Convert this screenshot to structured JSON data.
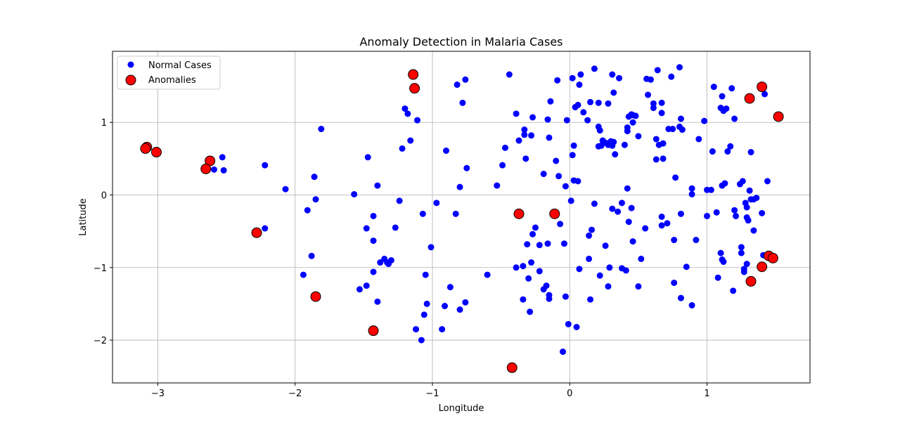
{
  "chart_data": {
    "type": "scatter",
    "title": "Anomaly Detection in Malaria Cases",
    "xlabel": "Longitude",
    "ylabel": "Latitude",
    "xlim": [
      -3.33,
      1.75
    ],
    "ylim": [
      -2.59,
      1.98
    ],
    "xticks": [
      -3,
      -2,
      -1,
      0,
      1
    ],
    "yticks": [
      -2,
      -1,
      0,
      1
    ],
    "xtick_labels": [
      "−3",
      "−2",
      "−1",
      "0",
      "1"
    ],
    "ytick_labels": [
      "−2",
      "−1",
      "0",
      "1"
    ],
    "grid": true,
    "legend_position": "top-left",
    "colors": {
      "normal": "#0000ff",
      "anomaly": "#ff0000",
      "anomaly_edge": "#000000",
      "grid": "#b0b0b0"
    },
    "series": [
      {
        "name": "Normal Cases",
        "points": [
          [
            -2.53,
            0.52
          ],
          [
            -2.59,
            0.35
          ],
          [
            -2.52,
            0.34
          ],
          [
            -2.22,
            0.41
          ],
          [
            -2.22,
            -0.46
          ],
          [
            -2.07,
            0.08
          ],
          [
            -1.81,
            0.91
          ],
          [
            -1.86,
            0.25
          ],
          [
            -1.85,
            -0.06
          ],
          [
            -1.91,
            -0.21
          ],
          [
            -1.88,
            -0.84
          ],
          [
            -1.94,
            -1.1
          ],
          [
            -1.57,
            0.01
          ],
          [
            -1.47,
            0.52
          ],
          [
            -1.48,
            -0.46
          ],
          [
            -1.43,
            -0.29
          ],
          [
            -1.43,
            -0.63
          ],
          [
            -1.43,
            -1.06
          ],
          [
            -1.48,
            -1.25
          ],
          [
            -1.53,
            -1.3
          ],
          [
            -1.4,
            -1.47
          ],
          [
            -1.4,
            0.13
          ],
          [
            -1.38,
            -0.93
          ],
          [
            -1.35,
            -0.88
          ],
          [
            -1.33,
            -0.93
          ],
          [
            -1.3,
            -0.9
          ],
          [
            -1.32,
            -0.95
          ],
          [
            -1.27,
            -0.45
          ],
          [
            -1.24,
            -0.08
          ],
          [
            -1.22,
            0.64
          ],
          [
            -1.2,
            1.19
          ],
          [
            -1.18,
            1.12
          ],
          [
            -1.16,
            0.75
          ],
          [
            -1.11,
            1.03
          ],
          [
            -1.07,
            -0.26
          ],
          [
            -1.05,
            -1.1
          ],
          [
            -1.04,
            -1.5
          ],
          [
            -1.06,
            -1.65
          ],
          [
            -1.12,
            -1.85
          ],
          [
            -1.08,
            -2.0
          ],
          [
            -1.01,
            -0.72
          ],
          [
            -0.97,
            -0.11
          ],
          [
            -0.9,
            0.61
          ],
          [
            -0.87,
            -1.27
          ],
          [
            -0.91,
            -1.53
          ],
          [
            -0.93,
            -1.85
          ],
          [
            -0.83,
            -0.26
          ],
          [
            -0.8,
            0.11
          ],
          [
            -0.82,
            1.52
          ],
          [
            -0.78,
            1.27
          ],
          [
            -0.76,
            1.59
          ],
          [
            -0.75,
            0.37
          ],
          [
            -0.76,
            -1.48
          ],
          [
            -0.8,
            -1.58
          ],
          [
            -0.6,
            -1.1
          ],
          [
            -0.53,
            0.13
          ],
          [
            -0.49,
            0.41
          ],
          [
            -0.47,
            0.65
          ],
          [
            -0.44,
            1.66
          ],
          [
            -0.39,
            1.12
          ],
          [
            -0.37,
            0.75
          ],
          [
            -0.33,
            0.9
          ],
          [
            -0.33,
            0.83
          ],
          [
            -0.32,
            0.5
          ],
          [
            -0.28,
            0.82
          ],
          [
            -0.27,
            1.07
          ],
          [
            -0.27,
            -0.54
          ],
          [
            -0.25,
            -0.45
          ],
          [
            -0.31,
            -0.68
          ],
          [
            -0.34,
            -0.98
          ],
          [
            -0.39,
            -1.0
          ],
          [
            -0.28,
            -0.93
          ],
          [
            -0.3,
            -1.15
          ],
          [
            -0.34,
            -1.44
          ],
          [
            -0.29,
            -1.61
          ],
          [
            -0.22,
            -0.69
          ],
          [
            -0.22,
            -1.05
          ],
          [
            -0.19,
            -1.3
          ],
          [
            -0.17,
            -1.25
          ],
          [
            -0.15,
            -1.38
          ],
          [
            -0.15,
            -1.43
          ],
          [
            -0.16,
            -0.67
          ],
          [
            -0.19,
            0.29
          ],
          [
            -0.16,
            1.04
          ],
          [
            -0.14,
            1.29
          ],
          [
            -0.15,
            0.79
          ],
          [
            -0.1,
            0.47
          ],
          [
            -0.08,
            0.26
          ],
          [
            -0.09,
            1.58
          ],
          [
            -0.07,
            -0.4
          ],
          [
            -0.04,
            -0.67
          ],
          [
            -0.03,
            -1.4
          ],
          [
            -0.01,
            -1.78
          ],
          [
            -0.05,
            -2.16
          ],
          [
            -0.03,
            0.12
          ],
          [
            -0.02,
            1.03
          ],
          [
            0.01,
            -0.08
          ],
          [
            0.02,
            0.55
          ],
          [
            0.03,
            0.68
          ],
          [
            0.03,
            0.2
          ],
          [
            0.06,
            0.19
          ],
          [
            0.02,
            1.61
          ],
          [
            0.04,
            1.21
          ],
          [
            0.06,
            1.24
          ],
          [
            0.07,
            1.52
          ],
          [
            0.08,
            1.66
          ],
          [
            0.1,
            1.14
          ],
          [
            0.05,
            -1.82
          ],
          [
            0.07,
            -1.02
          ],
          [
            0.14,
            -0.56
          ],
          [
            0.14,
            -0.88
          ],
          [
            0.15,
            -1.44
          ],
          [
            0.16,
            -0.48
          ],
          [
            0.18,
            -0.12
          ],
          [
            0.13,
            1.03
          ],
          [
            0.15,
            1.28
          ],
          [
            0.18,
            1.74
          ],
          [
            0.21,
            1.27
          ],
          [
            0.21,
            0.94
          ],
          [
            0.22,
            0.89
          ],
          [
            0.21,
            0.67
          ],
          [
            0.23,
            0.68
          ],
          [
            0.24,
            0.75
          ],
          [
            0.26,
            0.72
          ],
          [
            0.28,
            0.69
          ],
          [
            0.28,
            1.26
          ],
          [
            0.3,
            0.7
          ],
          [
            0.3,
            0.74
          ],
          [
            0.31,
            0.68
          ],
          [
            0.32,
            0.73
          ],
          [
            0.33,
            0.56
          ],
          [
            0.31,
            1.66
          ],
          [
            0.32,
            1.41
          ],
          [
            0.36,
            1.61
          ],
          [
            0.22,
            -1.11
          ],
          [
            0.26,
            -0.7
          ],
          [
            0.28,
            -1.26
          ],
          [
            0.29,
            -1.0
          ],
          [
            0.31,
            -0.19
          ],
          [
            0.35,
            -0.23
          ],
          [
            0.38,
            -0.11
          ],
          [
            0.4,
            0.69
          ],
          [
            0.42,
            0.88
          ],
          [
            0.42,
            0.93
          ],
          [
            0.43,
            1.08
          ],
          [
            0.45,
            1.11
          ],
          [
            0.46,
            1.1
          ],
          [
            0.46,
            1.0
          ],
          [
            0.48,
            1.09
          ],
          [
            0.42,
            0.09
          ],
          [
            0.43,
            -0.37
          ],
          [
            0.45,
            -0.18
          ],
          [
            0.46,
            -0.64
          ],
          [
            0.38,
            -1.01
          ],
          [
            0.41,
            -1.04
          ],
          [
            0.5,
            0.81
          ],
          [
            0.55,
            -0.46
          ],
          [
            0.52,
            -0.88
          ],
          [
            0.5,
            -1.26
          ],
          [
            0.56,
            1.6
          ],
          [
            0.57,
            1.38
          ],
          [
            0.59,
            1.59
          ],
          [
            0.61,
            1.26
          ],
          [
            0.61,
            1.2
          ],
          [
            0.64,
            1.72
          ],
          [
            0.67,
            1.27
          ],
          [
            0.67,
            1.13
          ],
          [
            0.63,
            0.77
          ],
          [
            0.65,
            0.69
          ],
          [
            0.63,
            0.49
          ],
          [
            0.68,
            0.5
          ],
          [
            0.68,
            0.71
          ],
          [
            0.72,
            0.91
          ],
          [
            0.75,
            0.91
          ],
          [
            0.77,
            0.24
          ],
          [
            0.67,
            -0.3
          ],
          [
            0.67,
            -0.42
          ],
          [
            0.71,
            -0.39
          ],
          [
            0.76,
            -0.62
          ],
          [
            0.76,
            -1.21
          ],
          [
            0.81,
            -0.26
          ],
          [
            0.81,
            -1.42
          ],
          [
            0.8,
            1.76
          ],
          [
            0.74,
            1.63
          ],
          [
            0.81,
            1.05
          ],
          [
            0.8,
            0.94
          ],
          [
            0.82,
            0.9
          ],
          [
            0.85,
            -0.99
          ],
          [
            0.89,
            0.09
          ],
          [
            0.89,
            0.01
          ],
          [
            0.92,
            -0.62
          ],
          [
            0.89,
            -1.52
          ],
          [
            0.98,
            1.02
          ],
          [
            0.94,
            0.77
          ],
          [
            1.0,
            0.07
          ],
          [
            1.0,
            -0.29
          ],
          [
            1.03,
            0.07
          ],
          [
            1.04,
            0.6
          ],
          [
            1.07,
            -0.24
          ],
          [
            1.08,
            -1.14
          ],
          [
            1.1,
            -0.8
          ],
          [
            1.11,
            -0.89
          ],
          [
            1.12,
            -0.92
          ],
          [
            1.11,
            0.13
          ],
          [
            1.13,
            0.16
          ],
          [
            1.1,
            1.2
          ],
          [
            1.12,
            1.16
          ],
          [
            1.14,
            1.19
          ],
          [
            1.05,
            1.49
          ],
          [
            1.11,
            1.36
          ],
          [
            1.18,
            1.47
          ],
          [
            1.17,
            0.67
          ],
          [
            1.15,
            0.6
          ],
          [
            1.2,
            -0.21
          ],
          [
            1.21,
            -0.29
          ],
          [
            1.19,
            -1.32
          ],
          [
            1.2,
            1.05
          ],
          [
            1.24,
            0.15
          ],
          [
            1.26,
            0.19
          ],
          [
            1.25,
            -0.72
          ],
          [
            1.25,
            -0.8
          ],
          [
            1.27,
            -1.02
          ],
          [
            1.27,
            -1.06
          ],
          [
            1.29,
            -0.95
          ],
          [
            1.28,
            -0.11
          ],
          [
            1.29,
            -0.17
          ],
          [
            1.29,
            -0.31
          ],
          [
            1.3,
            -0.35
          ],
          [
            1.31,
            0.06
          ],
          [
            1.32,
            -0.06
          ],
          [
            1.34,
            -0.06
          ],
          [
            1.36,
            -0.04
          ],
          [
            1.34,
            -0.49
          ],
          [
            1.32,
            0.59
          ],
          [
            1.4,
            -0.25
          ],
          [
            1.41,
            -0.83
          ],
          [
            1.44,
            0.19
          ],
          [
            1.42,
            1.39
          ]
        ]
      },
      {
        "name": "Anomalies",
        "points": [
          [
            -3.08,
            0.66
          ],
          [
            -3.09,
            0.64
          ],
          [
            -3.01,
            0.59
          ],
          [
            -2.62,
            0.47
          ],
          [
            -2.65,
            0.36
          ],
          [
            -2.28,
            -0.52
          ],
          [
            -1.85,
            -1.4
          ],
          [
            -1.43,
            -1.87
          ],
          [
            -1.14,
            1.66
          ],
          [
            -1.13,
            1.47
          ],
          [
            -0.37,
            -0.26
          ],
          [
            -0.11,
            -0.26
          ],
          [
            -0.42,
            -2.38
          ],
          [
            1.31,
            1.33
          ],
          [
            1.4,
            1.49
          ],
          [
            1.52,
            1.08
          ],
          [
            1.45,
            -0.84
          ],
          [
            1.48,
            -0.87
          ],
          [
            1.4,
            -0.99
          ],
          [
            1.32,
            -1.19
          ]
        ]
      }
    ]
  }
}
